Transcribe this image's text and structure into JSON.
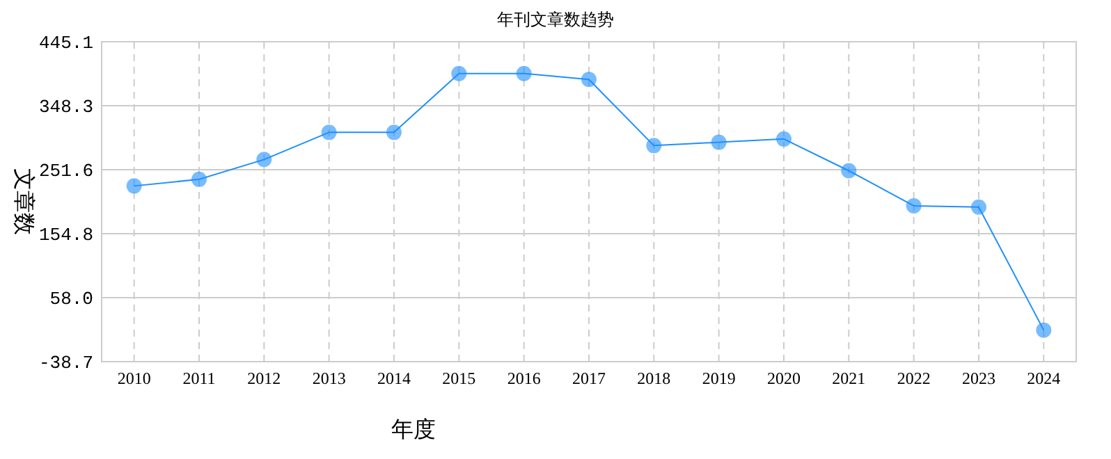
{
  "chart_data": {
    "type": "line",
    "title": "年刊文章数趋势",
    "xlabel": "年度",
    "ylabel": "文章数",
    "categories": [
      "2010",
      "2011",
      "2012",
      "2013",
      "2014",
      "2015",
      "2016",
      "2017",
      "2018",
      "2019",
      "2020",
      "2021",
      "2022",
      "2023",
      "2024"
    ],
    "series": [
      {
        "color": "#1e90ff",
        "values": [
          227,
          237,
          267,
          308,
          308,
          397,
          397,
          388,
          288,
          293,
          298,
          250,
          197,
          195,
          9
        ]
      }
    ],
    "ylim": [
      -38.7,
      445.1
    ],
    "yticks": [
      {
        "value": -38.7,
        "label": "-38.7"
      },
      {
        "value": 58,
        "label": "58.0"
      },
      {
        "value": 154.8,
        "label": "154.8"
      },
      {
        "value": 251.6,
        "label": "251.6"
      },
      {
        "value": 348.3,
        "label": "348.3"
      },
      {
        "value": 445.1,
        "label": "445.1"
      }
    ],
    "grid": true,
    "marker": "circle",
    "line_style": "solid"
  }
}
